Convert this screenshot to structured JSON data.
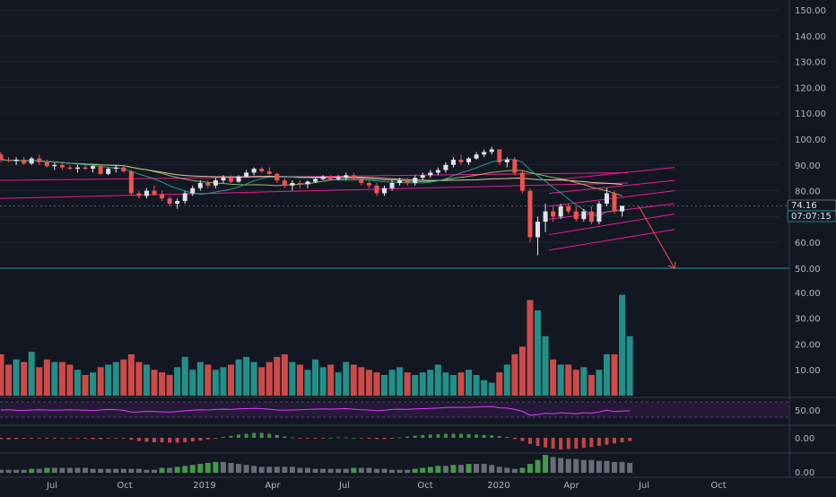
{
  "colors": {
    "background": "#131722",
    "up": "#e0e3eb",
    "down": "#ef5350",
    "vol_up": "#26a69a",
    "vol_down": "#ef5350",
    "channel": "#e91e8c",
    "hline": "#2196a6",
    "ma_slow": "#f5deb3",
    "ma_fast": "#26a69a",
    "ma_mid": "#9ccc65",
    "rsi_line": "#e040fb",
    "ao_up": "#4caf50",
    "ao_down": "#ef5350",
    "grid": "#1e222d",
    "separator": "#363a45",
    "axis_text": "#b2b5be",
    "price_label_bg": "#131722",
    "countdown_bg": "#131722",
    "countdown_border": "#26a69a"
  },
  "price_axis": {
    "min": 50,
    "max": 150,
    "ticks": [
      "150.00",
      "140.00",
      "130.00",
      "120.00",
      "110.00",
      "100.00",
      "90.00",
      "80.00",
      "70.00",
      "60.00",
      "50.00"
    ]
  },
  "volume_axis": {
    "ticks": [
      "40.00",
      "30.00",
      "20.00",
      "10.00"
    ]
  },
  "rsi_axis": {
    "tick": "50.00"
  },
  "macd_axis": {
    "tick": "0.00"
  },
  "ao_axis": {
    "tick": "0.00"
  },
  "last_price": "74.16",
  "countdown": "07:07:15",
  "time_axis": {
    "labels": [
      "Jul",
      "Oct",
      "2019",
      "Apr",
      "Jul",
      "Oct",
      "2020",
      "Apr",
      "Jul",
      "Oct"
    ]
  },
  "chart_data": {
    "type": "candlestick",
    "interval": "weekly",
    "price_range": [
      50,
      150
    ],
    "support_level": 50,
    "last_price": 74.16,
    "candles_ohlc": [
      [
        94,
        95,
        91,
        92
      ],
      [
        92,
        93,
        91,
        91.5
      ],
      [
        91.5,
        93,
        90,
        92
      ],
      [
        92,
        93,
        90,
        90.5
      ],
      [
        90.5,
        93,
        90,
        92.5
      ],
      [
        92.5,
        94,
        90,
        91
      ],
      [
        91,
        92,
        89,
        89.5
      ],
      [
        89.5,
        91,
        88,
        90
      ],
      [
        90,
        91,
        88,
        89
      ],
      [
        89,
        90,
        88,
        88.5
      ],
      [
        88.5,
        90,
        87,
        89
      ],
      [
        89,
        90,
        88,
        88.5
      ],
      [
        88.5,
        90,
        87,
        89.5
      ],
      [
        89.5,
        90,
        86,
        86.5
      ],
      [
        86.5,
        89,
        86,
        88.5
      ],
      [
        88.5,
        90,
        87,
        89
      ],
      [
        89,
        90,
        87,
        87.5
      ],
      [
        87.5,
        88,
        78,
        79
      ],
      [
        79,
        80,
        77,
        78
      ],
      [
        78,
        81,
        77,
        80
      ],
      [
        80,
        82,
        78,
        78.5
      ],
      [
        78.5,
        80,
        76,
        77
      ],
      [
        77,
        78,
        74,
        75
      ],
      [
        75,
        77,
        73,
        76
      ],
      [
        76,
        80,
        75,
        79
      ],
      [
        79,
        82,
        78,
        81
      ],
      [
        81,
        84,
        80,
        83
      ],
      [
        83,
        84,
        81,
        82
      ],
      [
        82,
        85,
        81,
        84
      ],
      [
        84,
        86,
        83,
        85
      ],
      [
        85,
        86,
        83,
        83.5
      ],
      [
        83.5,
        86,
        83,
        85.5
      ],
      [
        85.5,
        88,
        85,
        87
      ],
      [
        87,
        89,
        86,
        88.5
      ],
      [
        88.5,
        89,
        87,
        87.5
      ],
      [
        87.5,
        89,
        86,
        86.5
      ],
      [
        86.5,
        87,
        83,
        84
      ],
      [
        84,
        85,
        81,
        82
      ],
      [
        82,
        84,
        80,
        83
      ],
      [
        83,
        84,
        81,
        82.5
      ],
      [
        82.5,
        84,
        81,
        83.5
      ],
      [
        83.5,
        85,
        83,
        84.5
      ],
      [
        84.5,
        86,
        84,
        85.5
      ],
      [
        85.5,
        86,
        84,
        84.5
      ],
      [
        84.5,
        86,
        84,
        85
      ],
      [
        85,
        87,
        84,
        86
      ],
      [
        86,
        87,
        84,
        84.5
      ],
      [
        84.5,
        85,
        82,
        83
      ],
      [
        83,
        84,
        81,
        82
      ],
      [
        82,
        83,
        78,
        79
      ],
      [
        79,
        82,
        78,
        81
      ],
      [
        81,
        84,
        80,
        83
      ],
      [
        83,
        85,
        82,
        84
      ],
      [
        84,
        85,
        82,
        83
      ],
      [
        83,
        86,
        82,
        85
      ],
      [
        85,
        87,
        84,
        86
      ],
      [
        86,
        88,
        85,
        87
      ],
      [
        87,
        89,
        86,
        88
      ],
      [
        88,
        91,
        87,
        90
      ],
      [
        90,
        93,
        89,
        92
      ],
      [
        92,
        94,
        90,
        91
      ],
      [
        91,
        93,
        90,
        92.5
      ],
      [
        92.5,
        95,
        92,
        94
      ],
      [
        94,
        96,
        93,
        95
      ],
      [
        95,
        97,
        94,
        96
      ],
      [
        96,
        96,
        90,
        91
      ],
      [
        91,
        93,
        89,
        92
      ],
      [
        92,
        93,
        86,
        87
      ],
      [
        87,
        88,
        79,
        80
      ],
      [
        80,
        81,
        60,
        62
      ],
      [
        62,
        70,
        55,
        68
      ],
      [
        68,
        75,
        64,
        72
      ],
      [
        72,
        74,
        68,
        70
      ],
      [
        70,
        75,
        69,
        74
      ],
      [
        74,
        75,
        71,
        72
      ],
      [
        72,
        74,
        68,
        69
      ],
      [
        69,
        73,
        68,
        72
      ],
      [
        72,
        74,
        67,
        68
      ],
      [
        68,
        76,
        67,
        75
      ],
      [
        75,
        81,
        74,
        79
      ],
      [
        79,
        80,
        71,
        72
      ],
      [
        72,
        74,
        70,
        74.16
      ]
    ],
    "volume": [
      16,
      12,
      14,
      13,
      17,
      11,
      14,
      13,
      13,
      12,
      10,
      8,
      9,
      11,
      12,
      13,
      14,
      16,
      13,
      12,
      10,
      9,
      8,
      11,
      15,
      10,
      13,
      12,
      10,
      11,
      12,
      14,
      15,
      13,
      11,
      13,
      15,
      16,
      13,
      12,
      10,
      14,
      11,
      12,
      9,
      13,
      12,
      11,
      10,
      9,
      8,
      10,
      11,
      9,
      8,
      9,
      10,
      12,
      9,
      8,
      9,
      10,
      8,
      6,
      5,
      9,
      12,
      16,
      19,
      37,
      33,
      23,
      14,
      12,
      12,
      10,
      11,
      8,
      10,
      16,
      16,
      39,
      23
    ],
    "rsi": [
      50,
      51,
      49,
      48,
      50,
      51,
      50,
      49,
      50,
      51,
      50,
      49,
      48,
      50,
      52,
      51,
      49,
      42,
      43,
      45,
      44,
      43,
      42,
      44,
      47,
      49,
      51,
      50,
      52,
      53,
      52,
      54,
      55,
      56,
      55,
      53,
      50,
      49,
      50,
      51,
      52,
      53,
      54,
      53,
      54,
      55,
      53,
      51,
      50,
      47,
      49,
      52,
      53,
      52,
      54,
      55,
      56,
      57,
      59,
      60,
      59,
      60,
      61,
      62,
      63,
      58,
      57,
      52,
      45,
      30,
      33,
      38,
      36,
      40,
      38,
      36,
      40,
      38,
      43,
      49,
      44,
      46,
      47
    ],
    "macd_hist": [
      -0.3,
      -0.4,
      -0.3,
      -0.2,
      -0.2,
      -0.1,
      -0.2,
      -0.2,
      -0.1,
      -0.1,
      -0.2,
      -0.2,
      -0.3,
      -0.3,
      -0.2,
      -0.2,
      -0.1,
      -0.5,
      -0.8,
      -1.0,
      -1.1,
      -1.1,
      -1.2,
      -1.2,
      -1.1,
      -0.9,
      -0.7,
      -0.4,
      -0.2,
      0.2,
      0.5,
      0.8,
      1.0,
      1.2,
      1.2,
      1.0,
      0.7,
      0.3,
      0.1,
      -0.1,
      -0.2,
      -0.2,
      -0.1,
      0.0,
      0.1,
      0.1,
      0.0,
      -0.1,
      -0.2,
      -0.3,
      -0.3,
      -0.2,
      0.1,
      0.3,
      0.5,
      0.7,
      0.8,
      0.9,
      1.0,
      1.0,
      1.0,
      0.9,
      0.8,
      0.7,
      0.6,
      0.4,
      0.2,
      -0.3,
      -0.8,
      -1.5,
      -2.0,
      -2.4,
      -2.7,
      -2.9,
      -2.8,
      -2.7,
      -2.5,
      -2.3,
      -2.0,
      -1.7,
      -1.4,
      -1.1,
      -0.8
    ],
    "ao": [
      3,
      3,
      3,
      3,
      4,
      4,
      5,
      5,
      5,
      5,
      5,
      5,
      4,
      4,
      4,
      4,
      4,
      4,
      4,
      3,
      3,
      5,
      5,
      6,
      7,
      8,
      9,
      10,
      11,
      11,
      10,
      9,
      8,
      7,
      6,
      6,
      6,
      6,
      6,
      5,
      5,
      4,
      4,
      4,
      4,
      4,
      5,
      5,
      5,
      4,
      4,
      3,
      3,
      3,
      4,
      5,
      6,
      7,
      7,
      8,
      8,
      9,
      9,
      9,
      8,
      6,
      5,
      4,
      5,
      9,
      13,
      18,
      16,
      15,
      14,
      14,
      13,
      13,
      12,
      12,
      11,
      11,
      10
    ],
    "annotations": {
      "channel_lines": 6,
      "arrow": "down"
    }
  }
}
